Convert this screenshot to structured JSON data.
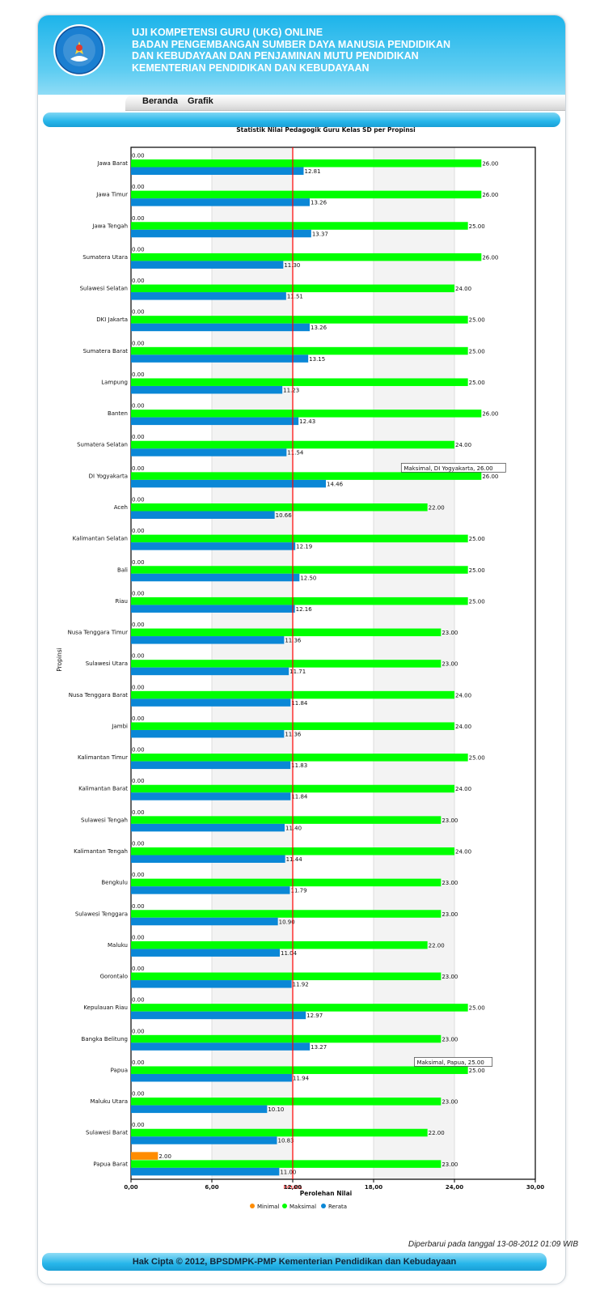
{
  "header": {
    "lines": [
      "UJI KOMPETENSI GURU (UKG) ONLINE",
      "BADAN PENGEMBANGAN SUMBER DAYA MANUSIA PENDIDIKAN",
      "DAN KEBUDAYAAN DAN PENJAMINAN MUTU PENDIDIKAN",
      "KEMENTERIAN PENDIDIKAN DAN KEBUDAYAAN"
    ],
    "logo_text": "TUT WURI HANDAYANI"
  },
  "nav": {
    "items": [
      "Beranda",
      "Grafik"
    ]
  },
  "colors": {
    "minimal": "#ff8c00",
    "maksimal": "#00ff00",
    "rerata": "#0a87d6",
    "rerata_line": "#ff0000"
  },
  "chart_data": {
    "type": "bar",
    "orientation": "horizontal",
    "title": "Statistik Nilai Pedagogik Guru Kelas SD per Propinsi",
    "xlabel": "Perolehan Nilai",
    "ylabel": "Propinsi",
    "xlim": [
      0,
      30
    ],
    "x_ticks": [
      "0,00",
      "6,00",
      "12,00",
      "18,00",
      "24,00",
      "30,00"
    ],
    "grid": true,
    "legend_position": "bottom",
    "categories": [
      "Jawa Barat",
      "Jawa Timur",
      "Jawa Tengah",
      "Sumatera Utara",
      "Sulawesi Selatan",
      "DKI Jakarta",
      "Sumatera Barat",
      "Lampung",
      "Banten",
      "Sumatera Selatan",
      "DI Yogyakarta",
      "Aceh",
      "Kalimantan Selatan",
      "Bali",
      "Riau",
      "Nusa Tenggara Timur",
      "Sulawesi Utara",
      "Nusa Tenggara Barat",
      "Jambi",
      "Kalimantan Timur",
      "Kalimantan Barat",
      "Sulawesi Tengah",
      "Kalimantan Tengah",
      "Bengkulu",
      "Sulawesi Tenggara",
      "Maluku",
      "Gorontalo",
      "Kepulauan Riau",
      "Bangka Belitung",
      "Papua",
      "Maluku Utara",
      "Sulawesi Barat",
      "Papua Barat"
    ],
    "series": [
      {
        "name": "Minimal",
        "values": [
          0,
          0,
          0,
          0,
          0,
          0,
          0,
          0,
          0,
          0,
          0,
          0,
          0,
          0,
          0,
          0,
          0,
          0,
          0,
          0,
          0,
          0,
          0,
          0,
          0,
          0,
          0,
          0,
          0,
          0,
          0,
          0,
          2
        ],
        "labels": [
          "0.00",
          "0.00",
          "0.00",
          "0.00",
          "0.00",
          "0.00",
          "0.00",
          "0.00",
          "0.00",
          "0.00",
          "0.00",
          "0.00",
          "0.00",
          "0.00",
          "0.00",
          "0.00",
          "0.00",
          "0.00",
          "0.00",
          "0.00",
          "0.00",
          "0.00",
          "0.00",
          "0.00",
          "0.00",
          "0.00",
          "0.00",
          "0.00",
          "0.00",
          "0.00",
          "0.00",
          "0.00",
          "2.00"
        ]
      },
      {
        "name": "Maksimal",
        "values": [
          26,
          26,
          25,
          26,
          24,
          25,
          25,
          25,
          26,
          24,
          26,
          22,
          25,
          25,
          25,
          23,
          23,
          24,
          24,
          25,
          24,
          23,
          24,
          23,
          23,
          22,
          23,
          25,
          23,
          25,
          23,
          22,
          23
        ],
        "labels": [
          "26.00",
          "26.00",
          "25.00",
          "26.00",
          "24.00",
          "25.00",
          "25.00",
          "25.00",
          "26.00",
          "24.00",
          "26.00",
          "22.00",
          "25.00",
          "25.00",
          "25.00",
          "23.00",
          "23.00",
          "24.00",
          "24.00",
          "25.00",
          "24.00",
          "23.00",
          "24.00",
          "23.00",
          "23.00",
          "22.00",
          "23.00",
          "25.00",
          "23.00",
          "25.00",
          "23.00",
          "22.00",
          "23.00"
        ]
      },
      {
        "name": "Rerata",
        "values": [
          12.81,
          13.26,
          13.37,
          11.3,
          11.51,
          13.26,
          13.15,
          11.23,
          12.43,
          11.54,
          14.46,
          10.66,
          12.19,
          12.5,
          12.16,
          11.36,
          11.71,
          11.84,
          11.36,
          11.83,
          11.84,
          11.4,
          11.44,
          11.79,
          10.9,
          11.04,
          11.92,
          12.97,
          13.27,
          11.94,
          10.1,
          10.83,
          11.0
        ],
        "labels": [
          "12.81",
          "13.26",
          "13.37",
          "11.30",
          "11.51",
          "13.26",
          "13.15",
          "11.23",
          "12.43",
          "11.54",
          "14.46",
          "10.66",
          "12.19",
          "12.50",
          "12.16",
          "11.36",
          "11.71",
          "11.84",
          "11.36",
          "11.83",
          "11.84",
          "11.40",
          "11.44",
          "11.79",
          "10.90",
          "11.04",
          "11.92",
          "12.97",
          "13.27",
          "11.94",
          "10.10",
          "10.83",
          "11.00"
        ]
      }
    ],
    "reference_line": {
      "label": "Rerata",
      "value": 12
    },
    "tooltips": [
      {
        "text": "Maksimal, DI Yogyakarta, 26.00",
        "category": "DI Yogyakarta"
      },
      {
        "text": "Maksimal, Papua, 25.00",
        "category": "Papua"
      }
    ]
  },
  "updated_text": "Diperbarui pada tanggal 13-08-2012 01:09 WIB",
  "footer_text": "Hak Cipta © 2012, BPSDMPK-PMP Kementerian Pendidikan dan Kebudayaan"
}
